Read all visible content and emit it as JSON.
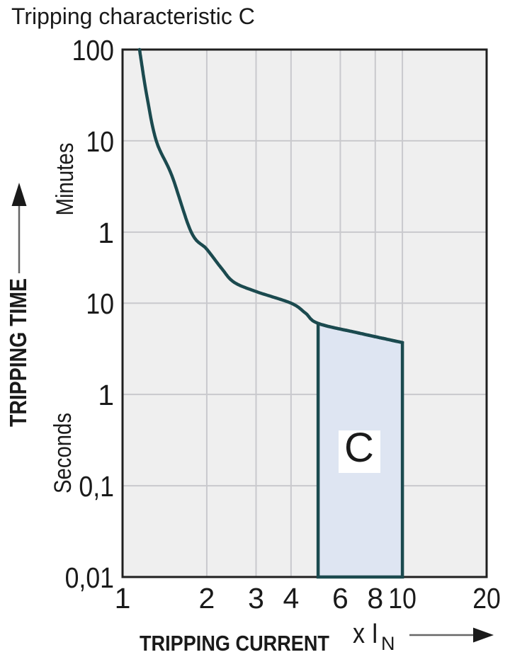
{
  "chart_data": {
    "type": "line",
    "title": "Tripping characteristic C",
    "x_axis": {
      "label": "TRIPPING CURRENT",
      "unit_main": "x I",
      "unit_sub": "N",
      "scale": "log",
      "range": [
        1,
        20
      ],
      "ticks": [
        {
          "label": "1",
          "value": 1
        },
        {
          "label": "2",
          "value": 2
        },
        {
          "label": "3",
          "value": 3
        },
        {
          "label": "4",
          "value": 4
        },
        {
          "label": "6",
          "value": 6
        },
        {
          "label": "8",
          "value": 8
        },
        {
          "label": "10",
          "value": 10
        },
        {
          "label": "20",
          "value": 20
        }
      ]
    },
    "y_axis": {
      "label": "TRIPPING TIME",
      "unit_upper": "Minutes",
      "unit_lower": "Seconds",
      "scale": "log",
      "range_seconds": [
        0.01,
        6000
      ],
      "ticks": [
        {
          "label": "100",
          "seconds": 6000,
          "unit": "minutes"
        },
        {
          "label": "10",
          "seconds": 600,
          "unit": "minutes"
        },
        {
          "label": "1",
          "seconds": 60,
          "unit": "minutes"
        },
        {
          "label": "10",
          "seconds": 10,
          "unit": "seconds"
        },
        {
          "label": "1",
          "seconds": 1,
          "unit": "seconds"
        },
        {
          "label": "0,1",
          "seconds": 0.1,
          "unit": "seconds"
        },
        {
          "label": "0,01",
          "seconds": 0.01,
          "unit": "seconds"
        }
      ]
    },
    "series": [
      {
        "name": "tripping-curve",
        "points_x_t_seconds": [
          [
            1.15,
            6000
          ],
          [
            1.22,
            1900
          ],
          [
            1.32,
            600
          ],
          [
            1.5,
            250
          ],
          [
            1.76,
            60
          ],
          [
            2.0,
            39
          ],
          [
            2.26,
            24
          ],
          [
            2.5,
            17
          ],
          [
            3.0,
            13.4
          ],
          [
            4.0,
            10
          ],
          [
            4.5,
            7.8
          ],
          [
            5.0,
            6.0
          ],
          [
            7.0,
            4.7
          ],
          [
            10.0,
            3.7
          ]
        ]
      }
    ],
    "region": {
      "label": "C",
      "x_from": 5,
      "x_to": 10,
      "top_points_x_t_seconds": [
        [
          5,
          6.0
        ],
        [
          7,
          4.7
        ],
        [
          10,
          3.7
        ]
      ],
      "bottom_seconds": 0.01
    },
    "colors": {
      "curve": "#1b4a4f",
      "region_fill": "#dee5f2",
      "region_border": "#1b4a4f",
      "plot_background": "#efefef",
      "gridline": "#c9c9cd",
      "plot_border": "#1f1f1f",
      "text": "#1a1a1a"
    },
    "grid": true,
    "legend": false
  }
}
